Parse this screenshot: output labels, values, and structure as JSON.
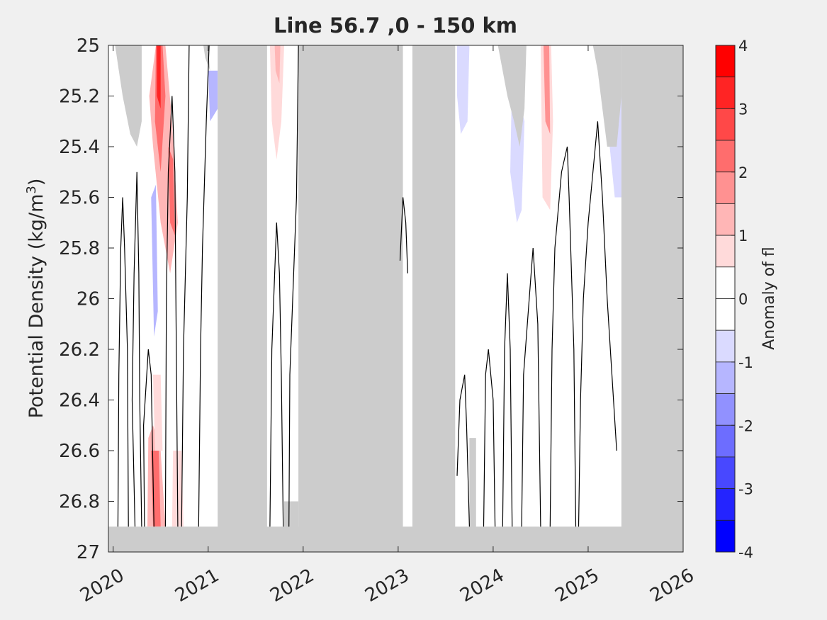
{
  "chart_data": {
    "type": "heatmap",
    "title": "Line 56.7 ,0 - 150 km",
    "ylabel": "Potential Density (kg/m",
    "ylabel_superscript": "3",
    "ylabel_suffix": ")",
    "colorbar_label": "Anomaly of fl",
    "xlim": [
      2019.95,
      2026
    ],
    "ylim": [
      25,
      27
    ],
    "y_reversed": true,
    "x_ticks": [
      "2020",
      "2021",
      "2022",
      "2023",
      "2024",
      "2025",
      "2026"
    ],
    "x_tick_values": [
      2020,
      2021,
      2022,
      2023,
      2024,
      2025,
      2026
    ],
    "y_ticks": [
      "25",
      "25.2",
      "25.4",
      "25.6",
      "25.8",
      "26",
      "26.2",
      "26.4",
      "26.6",
      "26.8",
      "27"
    ],
    "y_tick_values": [
      25,
      25.2,
      25.4,
      25.6,
      25.8,
      26,
      26.2,
      26.4,
      26.6,
      26.8,
      27
    ],
    "colorbar_ticks": [
      "4",
      "3",
      "2",
      "1",
      "0",
      "-1",
      "-2",
      "-3",
      "-4"
    ],
    "colorbar_tick_values": [
      4,
      3,
      2,
      1,
      0,
      -1,
      -2,
      -3,
      -4
    ],
    "colorbar_levels": [
      {
        "lo": 3.5,
        "hi": 4,
        "color": "#ff0000"
      },
      {
        "lo": 3,
        "hi": 3.5,
        "color": "#ff2424"
      },
      {
        "lo": 2.5,
        "hi": 3,
        "color": "#ff4848"
      },
      {
        "lo": 2,
        "hi": 2.5,
        "color": "#ff6d6d"
      },
      {
        "lo": 1.5,
        "hi": 2,
        "color": "#ff9191"
      },
      {
        "lo": 1,
        "hi": 1.5,
        "color": "#ffb6b6"
      },
      {
        "lo": 0.5,
        "hi": 1,
        "color": "#ffdada"
      },
      {
        "lo": 0,
        "hi": 0.5,
        "color": "#ffffff"
      },
      {
        "lo": -0.5,
        "hi": 0,
        "color": "#ffffff"
      },
      {
        "lo": -1,
        "hi": -0.5,
        "color": "#dadaff"
      },
      {
        "lo": -1.5,
        "hi": -1,
        "color": "#b6b6ff"
      },
      {
        "lo": -2,
        "hi": -1.5,
        "color": "#9191ff"
      },
      {
        "lo": -2.5,
        "hi": -2,
        "color": "#6d6dff"
      },
      {
        "lo": -3,
        "hi": -2.5,
        "color": "#4848ff"
      },
      {
        "lo": -3.5,
        "hi": -3,
        "color": "#2424ff"
      },
      {
        "lo": -4,
        "hi": -3.5,
        "color": "#0000ff"
      }
    ],
    "colors": {
      "no_data": "#cccccc",
      "background": "#f0f0f0",
      "plot_bg": "#ffffff",
      "contour": "#000000"
    },
    "no_data_regions": [
      {
        "x": [
          2019.95,
          2026
        ],
        "y": [
          26.9,
          27
        ]
      },
      {
        "x": [
          2021.1,
          2021.62
        ],
        "y": [
          25,
          27
        ]
      },
      {
        "x": [
          2021.95,
          2023.05
        ],
        "y": [
          25,
          27
        ]
      },
      {
        "x": [
          2023.15,
          2023.6
        ],
        "y": [
          25,
          27
        ]
      },
      {
        "x": [
          2025.35,
          2026
        ],
        "y": [
          25,
          27
        ]
      },
      {
        "x": [
          2023.75,
          2023.82
        ],
        "y": [
          26.55,
          27
        ]
      },
      {
        "x": [
          2021.8,
          2021.95
        ],
        "y": [
          26.8,
          27
        ]
      }
    ],
    "no_data_polygons": [
      [
        [
          2020.02,
          25
        ],
        [
          2020.3,
          25
        ],
        [
          2020.3,
          25.3
        ],
        [
          2020.25,
          25.4
        ],
        [
          2020.18,
          25.35
        ],
        [
          2020.1,
          25.2
        ],
        [
          2020.06,
          25.1
        ]
      ],
      [
        [
          2024.05,
          25
        ],
        [
          2024.35,
          25
        ],
        [
          2024.33,
          25.25
        ],
        [
          2024.28,
          25.4
        ],
        [
          2024.22,
          25.3
        ],
        [
          2024.15,
          25.2
        ]
      ],
      [
        [
          2025.05,
          25
        ],
        [
          2025.35,
          25
        ],
        [
          2025.35,
          25.2
        ],
        [
          2025.3,
          25.4
        ],
        [
          2025.2,
          25.4
        ],
        [
          2025.1,
          25.1
        ]
      ],
      [
        [
          2020.95,
          25
        ],
        [
          2021.0,
          25
        ],
        [
          2021.02,
          25.1
        ],
        [
          2020.97,
          25.05
        ]
      ]
    ],
    "anomaly_patches": [
      {
        "points": [
          [
            2020.45,
            25
          ],
          [
            2020.55,
            25
          ],
          [
            2020.62,
            25.3
          ],
          [
            2020.68,
            25.7
          ],
          [
            2020.6,
            25.9
          ],
          [
            2020.5,
            25.7
          ],
          [
            2020.42,
            25.4
          ],
          [
            2020.38,
            25.2
          ]
        ],
        "value": 1.2
      },
      {
        "points": [
          [
            2020.45,
            25
          ],
          [
            2020.52,
            25
          ],
          [
            2020.55,
            25.2
          ],
          [
            2020.5,
            25.5
          ],
          [
            2020.44,
            25.3
          ]
        ],
        "value": 2.2
      },
      {
        "points": [
          [
            2020.46,
            25
          ],
          [
            2020.5,
            25
          ],
          [
            2020.5,
            25.25
          ],
          [
            2020.46,
            25.2
          ]
        ],
        "value": 3.3
      },
      {
        "points": [
          [
            2020.58,
            25.4
          ],
          [
            2020.63,
            25.45
          ],
          [
            2020.65,
            25.75
          ],
          [
            2020.6,
            25.7
          ]
        ],
        "value": 2.2
      },
      {
        "points": [
          [
            2020.4,
            25.6
          ],
          [
            2020.45,
            25.55
          ],
          [
            2020.47,
            26.05
          ],
          [
            2020.43,
            26.15
          ]
        ],
        "value": -1.2
      },
      {
        "points": [
          [
            2020.37,
            26.55
          ],
          [
            2020.42,
            26.5
          ],
          [
            2020.5,
            26.6
          ],
          [
            2020.55,
            26.9
          ],
          [
            2020.36,
            26.9
          ]
        ],
        "value": 1.2
      },
      {
        "points": [
          [
            2020.42,
            26.3
          ],
          [
            2020.5,
            26.3
          ],
          [
            2020.52,
            26.6
          ],
          [
            2020.44,
            26.6
          ]
        ],
        "value": 0.7
      },
      {
        "points": [
          [
            2020.4,
            26.6
          ],
          [
            2020.48,
            26.6
          ],
          [
            2020.5,
            26.9
          ],
          [
            2020.42,
            26.9
          ]
        ],
        "value": 2.2
      },
      {
        "points": [
          [
            2020.63,
            26.6
          ],
          [
            2020.72,
            26.6
          ],
          [
            2020.74,
            26.9
          ],
          [
            2020.62,
            26.9
          ]
        ],
        "value": 0.7
      },
      {
        "points": [
          [
            2021.0,
            25.1
          ],
          [
            2021.1,
            25.1
          ],
          [
            2021.1,
            25.25
          ],
          [
            2021.02,
            25.3
          ]
        ],
        "value": -1.2
      },
      {
        "points": [
          [
            2021.65,
            25
          ],
          [
            2021.8,
            25
          ],
          [
            2021.77,
            25.3
          ],
          [
            2021.72,
            25.45
          ],
          [
            2021.67,
            25.3
          ]
        ],
        "value": 0.7
      },
      {
        "points": [
          [
            2021.7,
            25
          ],
          [
            2021.76,
            25
          ],
          [
            2021.75,
            25.15
          ],
          [
            2021.71,
            25.1
          ]
        ],
        "value": 1.2
      },
      {
        "points": [
          [
            2023.62,
            25
          ],
          [
            2023.75,
            25
          ],
          [
            2023.73,
            25.3
          ],
          [
            2023.66,
            25.35
          ],
          [
            2023.62,
            25.2
          ]
        ],
        "value": -0.7
      },
      {
        "points": [
          [
            2024.2,
            25.1
          ],
          [
            2024.33,
            25.3
          ],
          [
            2024.3,
            25.65
          ],
          [
            2024.25,
            25.7
          ],
          [
            2024.18,
            25.5
          ]
        ],
        "value": -0.7
      },
      {
        "points": [
          [
            2024.5,
            25
          ],
          [
            2024.61,
            25
          ],
          [
            2024.63,
            25.3
          ],
          [
            2024.6,
            25.65
          ],
          [
            2024.52,
            25.6
          ]
        ],
        "value": 0.7
      },
      {
        "points": [
          [
            2024.53,
            25
          ],
          [
            2024.59,
            25
          ],
          [
            2024.6,
            25.35
          ],
          [
            2024.55,
            25.3
          ]
        ],
        "value": 1.7
      },
      {
        "points": [
          [
            2025.2,
            25.3
          ],
          [
            2025.35,
            25.2
          ],
          [
            2025.35,
            25.6
          ],
          [
            2025.28,
            25.6
          ]
        ],
        "value": -0.7
      }
    ],
    "contours": [
      [
        [
          2020.05,
          26.9
        ],
        [
          2020.06,
          26.3
        ],
        [
          2020.08,
          25.8
        ],
        [
          2020.1,
          25.6
        ],
        [
          2020.12,
          25.8
        ],
        [
          2020.15,
          26.2
        ],
        [
          2020.16,
          26.9
        ]
      ],
      [
        [
          2020.23,
          26.9
        ],
        [
          2020.2,
          26.4
        ],
        [
          2020.22,
          25.9
        ],
        [
          2020.25,
          25.5
        ],
        [
          2020.27,
          25.9
        ],
        [
          2020.28,
          26.4
        ],
        [
          2020.3,
          26.9
        ]
      ],
      [
        [
          2020.33,
          26.9
        ],
        [
          2020.32,
          26.5
        ],
        [
          2020.37,
          26.2
        ],
        [
          2020.4,
          26.3
        ],
        [
          2020.43,
          26.9
        ]
      ],
      [
        [
          2020.55,
          26.9
        ],
        [
          2020.56,
          26.0
        ],
        [
          2020.58,
          25.5
        ],
        [
          2020.62,
          25.2
        ],
        [
          2020.65,
          25.5
        ],
        [
          2020.66,
          26.0
        ],
        [
          2020.68,
          26.9
        ]
      ],
      [
        [
          2020.72,
          26.9
        ],
        [
          2020.74,
          26.2
        ],
        [
          2020.78,
          25.6
        ],
        [
          2020.8,
          25.0
        ]
      ],
      [
        [
          2020.9,
          26.9
        ],
        [
          2020.92,
          26.2
        ],
        [
          2020.94,
          25.8
        ],
        [
          2020.98,
          25.3
        ],
        [
          2021.01,
          25.0
        ]
      ],
      [
        [
          2021.65,
          26.9
        ],
        [
          2021.67,
          26.2
        ],
        [
          2021.7,
          25.9
        ],
        [
          2021.72,
          25.7
        ],
        [
          2021.75,
          25.9
        ],
        [
          2021.77,
          26.3
        ],
        [
          2021.79,
          26.9
        ]
      ],
      [
        [
          2021.85,
          26.9
        ],
        [
          2021.86,
          26.3
        ],
        [
          2021.9,
          25.9
        ],
        [
          2021.93,
          25.6
        ],
        [
          2021.95,
          25.0
        ]
      ],
      [
        [
          2023.02,
          25.85
        ],
        [
          2023.05,
          25.6
        ],
        [
          2023.08,
          25.7
        ],
        [
          2023.1,
          25.9
        ]
      ],
      [
        [
          2023.62,
          26.7
        ],
        [
          2023.65,
          26.4
        ],
        [
          2023.7,
          26.3
        ],
        [
          2023.72,
          26.5
        ],
        [
          2023.75,
          26.9
        ]
      ],
      [
        [
          2023.9,
          26.9
        ],
        [
          2023.92,
          26.3
        ],
        [
          2023.95,
          26.2
        ],
        [
          2024.0,
          26.4
        ],
        [
          2024.02,
          26.9
        ]
      ],
      [
        [
          2024.1,
          26.9
        ],
        [
          2024.12,
          26.2
        ],
        [
          2024.15,
          25.9
        ],
        [
          2024.18,
          26.2
        ],
        [
          2024.2,
          26.9
        ]
      ],
      [
        [
          2024.3,
          26.9
        ],
        [
          2024.32,
          26.3
        ],
        [
          2024.38,
          26.0
        ],
        [
          2024.42,
          25.8
        ],
        [
          2024.47,
          26.1
        ],
        [
          2024.5,
          26.9
        ]
      ],
      [
        [
          2024.6,
          26.9
        ],
        [
          2024.62,
          26.2
        ],
        [
          2024.65,
          25.8
        ],
        [
          2024.72,
          25.5
        ],
        [
          2024.78,
          25.4
        ],
        [
          2024.8,
          25.6
        ],
        [
          2024.85,
          26.2
        ],
        [
          2024.87,
          26.9
        ]
      ],
      [
        [
          2024.9,
          26.9
        ],
        [
          2024.92,
          26.4
        ],
        [
          2024.95,
          26.0
        ],
        [
          2025.0,
          25.7
        ],
        [
          2025.05,
          25.5
        ],
        [
          2025.1,
          25.3
        ],
        [
          2025.15,
          25.6
        ],
        [
          2025.2,
          26.0
        ],
        [
          2025.25,
          26.3
        ],
        [
          2025.3,
          26.6
        ]
      ]
    ]
  }
}
